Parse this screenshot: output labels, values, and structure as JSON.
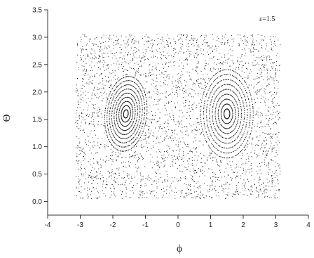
{
  "chart_data": {
    "type": "scatter",
    "title": "",
    "annotation": "ε=1.5",
    "xlabel": "ϕ",
    "ylabel": "Θ",
    "xlim": [
      -4,
      4
    ],
    "ylim": [
      -0.25,
      3.5
    ],
    "xticks": [
      -4,
      -3,
      -2,
      -1,
      0,
      1,
      2,
      3,
      4
    ],
    "xtick_labels": [
      "-4",
      "-3",
      "-2",
      "-1",
      "0",
      "1",
      "2",
      "3",
      "4"
    ],
    "yticks": [
      0.0,
      0.5,
      1.0,
      1.5,
      2.0,
      2.5,
      3.0,
      3.5
    ],
    "ytick_labels": [
      "0.0",
      "0.5",
      "1.0",
      "1.5",
      "2.0",
      "2.5",
      "3.0",
      "3.5"
    ],
    "grid": false,
    "description_of_data": "Poincare section: dense chaotic sea filling phi in [-3.14, 3.14], Theta in [0.05, 3.05], with two regular islands of nested elliptical orbits centered near (-1.6, 1.6) and (1.5, 1.6)",
    "islands": [
      {
        "center": [
          -1.6,
          1.6
        ],
        "semi_axes": [
          0.65,
          0.75
        ],
        "tilt_deg": -35
      },
      {
        "center": [
          1.5,
          1.6
        ],
        "semi_axes": [
          0.85,
          0.85
        ],
        "tilt_deg": -35
      }
    ],
    "sea_region": {
      "x": [
        -3.14,
        3.14
      ],
      "y": [
        0.05,
        3.05
      ]
    }
  }
}
